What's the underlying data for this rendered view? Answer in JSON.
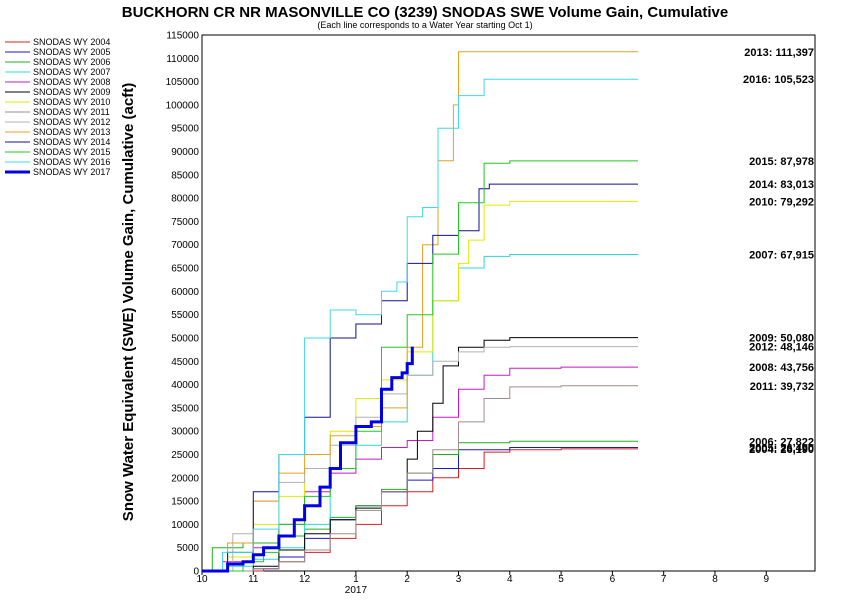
{
  "chart_data": {
    "type": "line",
    "title": "BUCKHORN CR NR MASONVILLE CO (3239) SNODAS SWE Volume Gain, Cumulative",
    "subtitle": "(Each line corresponds to a Water Year starting Oct 1)",
    "ylabel": "Snow Water Equivalent (SWE) Volume Gain, Cumulative (acft)",
    "xlabel": "",
    "year_label": "2017",
    "x_tick_labels": [
      "10",
      "11",
      "12",
      "1",
      "2",
      "3",
      "4",
      "5",
      "6",
      "7",
      "8",
      "9"
    ],
    "ylim": [
      0,
      115000
    ],
    "y_ticks": [
      0,
      5000,
      10000,
      15000,
      20000,
      25000,
      30000,
      35000,
      40000,
      45000,
      50000,
      55000,
      60000,
      65000,
      70000,
      75000,
      80000,
      85000,
      90000,
      95000,
      100000,
      105000,
      110000,
      115000
    ],
    "grid": true,
    "legend_position": "left",
    "series": [
      {
        "name": "SNODAS WY 2004",
        "color": "#d42020",
        "width": 1,
        "end_label": "2004: 26,190",
        "x": [
          0,
          1.2,
          1.5,
          2.0,
          2.5,
          3.0,
          3.5,
          4.0,
          4.5,
          5.0,
          5.5,
          6.0,
          7.0,
          8.0,
          8.5
        ],
        "y": [
          0,
          500,
          2000,
          4000,
          7000,
          10000,
          14000,
          17000,
          20000,
          22000,
          25500,
          26000,
          26190,
          26190,
          26190
        ]
      },
      {
        "name": "SNODAS WY 2005",
        "color": "#1a1ac8",
        "width": 1,
        "end_label": "2005: 26,490",
        "x": [
          0,
          1.0,
          1.5,
          2.0,
          2.5,
          3.0,
          3.5,
          4.0,
          4.5,
          5.0,
          6.0,
          7.0,
          8.0,
          8.5
        ],
        "y": [
          0,
          500,
          3000,
          7000,
          11000,
          14000,
          17000,
          19500,
          22000,
          26000,
          26490,
          26490,
          26490,
          26490
        ]
      },
      {
        "name": "SNODAS WY 2006",
        "color": "#20b020",
        "width": 1,
        "end_label": "2006: 27,822",
        "x": [
          0,
          0.2,
          0.8,
          1.5,
          2.0,
          2.5,
          3.0,
          3.5,
          4.0,
          4.5,
          5.0,
          6.0,
          7.0,
          8.0,
          8.5
        ],
        "y": [
          0,
          5000,
          6000,
          7500,
          9000,
          11500,
          14000,
          17500,
          21000,
          25000,
          27500,
          27822,
          27822,
          27822,
          27822
        ]
      },
      {
        "name": "SNODAS WY 2007",
        "color": "#28d8d8",
        "width": 1,
        "end_label": "2007: 67,915",
        "x": [
          0,
          0.5,
          1.0,
          1.5,
          2.0,
          2.5,
          3.0,
          3.5,
          4.0,
          4.5,
          5.0,
          5.5,
          6.0,
          7.0,
          8.0,
          8.5
        ],
        "y": [
          0,
          1000,
          2500,
          5000,
          10000,
          22000,
          27000,
          32000,
          42000,
          58000,
          65000,
          67500,
          67915,
          67915,
          67915,
          67915
        ]
      },
      {
        "name": "SNODAS WY 2008",
        "color": "#c818c8",
        "width": 1,
        "end_label": "2008: 43,756",
        "x": [
          0,
          0.4,
          1.0,
          1.5,
          2.0,
          2.5,
          3.0,
          3.5,
          4.0,
          4.5,
          5.0,
          5.5,
          6.0,
          7.0,
          8.0,
          8.5
        ],
        "y": [
          0,
          2000,
          5000,
          10000,
          17000,
          21000,
          24000,
          26500,
          28000,
          33000,
          39000,
          42000,
          43500,
          43756,
          43756,
          43756
        ]
      },
      {
        "name": "SNODAS WY 2009",
        "color": "#000000",
        "width": 1,
        "end_label": "2009: 50,080",
        "x": [
          0,
          1.0,
          1.5,
          2.0,
          2.5,
          3.0,
          3.5,
          4.0,
          4.2,
          4.5,
          4.7,
          5.0,
          5.5,
          6.0,
          7.0,
          8.0,
          8.5
        ],
        "y": [
          0,
          1000,
          4500,
          8000,
          11000,
          13500,
          17000,
          24000,
          30000,
          36000,
          44000,
          48000,
          49500,
          50080,
          50080,
          50080,
          50080
        ]
      },
      {
        "name": "SNODAS WY 2010",
        "color": "#e6e600",
        "width": 1,
        "end_label": "2010: 79,292",
        "x": [
          0,
          0.5,
          1.0,
          1.5,
          2.0,
          2.5,
          3.0,
          3.5,
          4.0,
          4.5,
          5.0,
          5.2,
          5.5,
          6.0,
          7.0,
          8.0,
          8.5
        ],
        "y": [
          0,
          3000,
          10000,
          16000,
          22000,
          30000,
          37000,
          41000,
          47000,
          58000,
          66000,
          71000,
          78500,
          79292,
          79292,
          79292,
          79292
        ]
      },
      {
        "name": "SNODAS WY 2011",
        "color": "#a08c8c",
        "width": 1,
        "end_label": "2011: 39,732",
        "x": [
          0,
          1.0,
          1.5,
          2.0,
          2.5,
          3.0,
          3.5,
          4.0,
          4.5,
          5.0,
          5.5,
          6.0,
          7.0,
          8.0,
          8.5
        ],
        "y": [
          0,
          500,
          2000,
          4500,
          8000,
          13000,
          17000,
          21000,
          26000,
          32000,
          37000,
          39500,
          39732,
          39732,
          39732
        ]
      },
      {
        "name": "SNODAS WY 2012",
        "color": "#b0b0b0",
        "width": 1,
        "end_label": "2012: 48,146",
        "x": [
          0,
          0.6,
          1.0,
          1.5,
          2.0,
          2.5,
          3.0,
          3.5,
          4.0,
          4.5,
          5.0,
          5.5,
          6.0,
          7.0,
          8.0,
          8.5
        ],
        "y": [
          0,
          8000,
          15000,
          19000,
          22000,
          27000,
          33000,
          38000,
          42000,
          45000,
          47000,
          48000,
          48146,
          48146,
          48146,
          48146
        ]
      },
      {
        "name": "SNODAS WY 2013",
        "color": "#e6a020",
        "width": 1,
        "end_label": "2013: 111,397",
        "x": [
          0,
          0.5,
          1.0,
          1.5,
          2.0,
          2.5,
          3.0,
          3.5,
          4.0,
          4.3,
          4.6,
          4.9,
          5.0,
          6.0,
          7.0,
          8.0,
          8.5
        ],
        "y": [
          0,
          6000,
          15000,
          21000,
          25000,
          29000,
          31000,
          35000,
          48000,
          70000,
          88000,
          100000,
          111397,
          111397,
          111397,
          111397,
          111397
        ]
      },
      {
        "name": "SNODAS WY 2014",
        "color": "#101090",
        "width": 1,
        "end_label": "2014: 83,013",
        "x": [
          0,
          0.5,
          1.0,
          1.5,
          2.0,
          2.5,
          3.0,
          3.5,
          4.0,
          4.5,
          5.0,
          5.4,
          5.6,
          6.0,
          7.0,
          8.0,
          8.5
        ],
        "y": [
          0,
          4000,
          17000,
          25000,
          33000,
          50000,
          53000,
          58000,
          66000,
          72000,
          73000,
          82000,
          83013,
          83013,
          83013,
          83013,
          83013
        ]
      },
      {
        "name": "SNODAS WY 2015",
        "color": "#20c820",
        "width": 1,
        "end_label": "2015: 87,978",
        "x": [
          0,
          0.8,
          1.2,
          1.5,
          2.0,
          2.5,
          3.0,
          3.5,
          4.0,
          4.5,
          5.0,
          5.5,
          6.0,
          7.0,
          8.0,
          8.5
        ],
        "y": [
          0,
          2000,
          4000,
          10000,
          16000,
          22000,
          30000,
          48000,
          55000,
          68000,
          79000,
          87500,
          87978,
          87978,
          87978,
          87978
        ]
      },
      {
        "name": "SNODAS WY 2016",
        "color": "#40d8e8",
        "width": 1,
        "end_label": "2016: 105,523",
        "x": [
          0,
          0.4,
          1.0,
          1.5,
          2.0,
          2.5,
          3.0,
          3.5,
          3.8,
          4.0,
          4.3,
          4.6,
          5.0,
          5.5,
          6.0,
          7.0,
          8.0,
          8.5
        ],
        "y": [
          0,
          4000,
          9000,
          25000,
          50000,
          56000,
          55000,
          60000,
          62000,
          76000,
          78000,
          95000,
          102000,
          105500,
          105523,
          105523,
          105523,
          105523
        ]
      },
      {
        "name": "SNODAS WY 2017",
        "color": "#0000e6",
        "width": 3,
        "end_label": "",
        "x": [
          0,
          0.5,
          0.8,
          1.0,
          1.2,
          1.5,
          1.8,
          2.0,
          2.3,
          2.5,
          2.7,
          3.0,
          3.3,
          3.5,
          3.7,
          3.9,
          4.0,
          4.1
        ],
        "y": [
          0,
          1500,
          2000,
          3500,
          5000,
          7500,
          11000,
          14000,
          18000,
          22000,
          27500,
          31000,
          32000,
          39000,
          41500,
          42500,
          44500,
          48146
        ]
      }
    ]
  }
}
